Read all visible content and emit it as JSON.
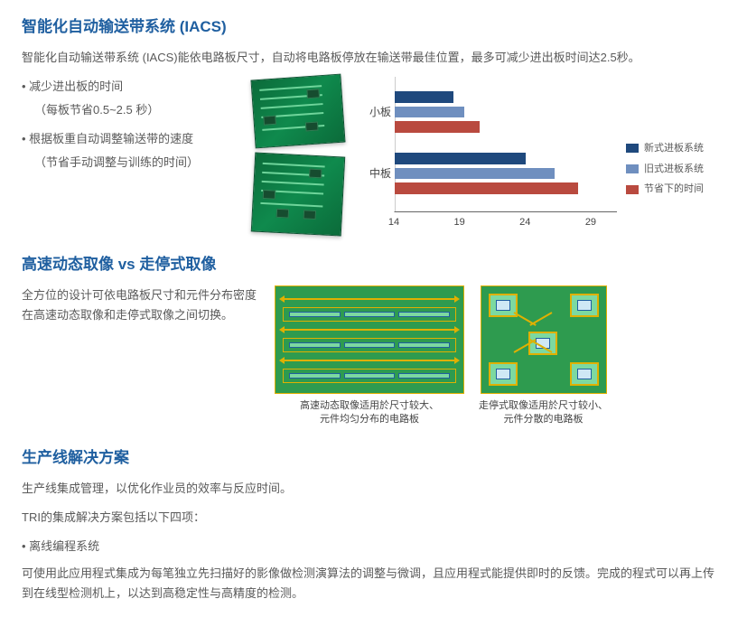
{
  "iacs": {
    "title": "智能化自动输送带系统 (IACS)",
    "desc": "智能化自动输送带系统 (IACS)能依电路板尺寸，自动将电路板停放在输送带最佳位置，最多可减少进出板时间达2.5秒。",
    "bullets": {
      "0": {
        "main": "减少进出板的时间",
        "sub": "（每板节省0.5~2.5 秒）"
      },
      "1": {
        "main": "根据板重自动调整输送带的速度",
        "sub": "（节省手动调整与训练的时间）"
      }
    },
    "chart": {
      "type": "grouped-bar-horizontal",
      "categories": {
        "0": "小板",
        "1": "中板"
      },
      "xticks": {
        "0": "14",
        "1": "19",
        "2": "24",
        "3": "29"
      },
      "xlim_min": 14,
      "xlim_max": 31,
      "series": {
        "new": {
          "label": "新式进板系统",
          "color": "#1f497d",
          "values": [
            18.5,
            24
          ]
        },
        "old": {
          "label": "旧式进板系统",
          "color": "#6f8fbf",
          "values": [
            19.3,
            26.2
          ]
        },
        "save": {
          "label": "节省下的时间",
          "color": "#b94a3f",
          "values": [
            20.5,
            28
          ]
        }
      },
      "background_color": "#ffffff",
      "axis_color": "#666666",
      "label_fontsize": 12
    }
  },
  "scan": {
    "title": "高速动态取像 vs 走停式取像",
    "desc": "全方位的设计可依电路板尺寸和元件分布密度在高速动态取像和走停式取像之间切换。",
    "fig1_caption_l1": "高速动态取像适用於尺寸较大、",
    "fig1_caption_l2": "元件均匀分布的电路板",
    "fig2_caption_l1": "走停式取像适用於尺寸较小、",
    "fig2_caption_l2": "元件分散的电路板",
    "panel_bg": "#2e9b4f",
    "panel_border": "#e0b000",
    "segment_fill": "#7cd9a0",
    "segment_border": "#1f5fa0"
  },
  "line": {
    "title": "生产线解决方案",
    "desc1": "生产线集成管理，以优化作业员的效率与反应时间。",
    "desc2": "TRI的集成解决方案包括以下四项：",
    "bullet1": "离线编程系统",
    "para": "可使用此应用程式集成为每笔独立先扫描好的影像做检测演算法的调整与微调，且应用程式能提供即时的反馈。完成的程式可以再上传到在线型检测机上，以达到高稳定性与高精度的检测。"
  }
}
